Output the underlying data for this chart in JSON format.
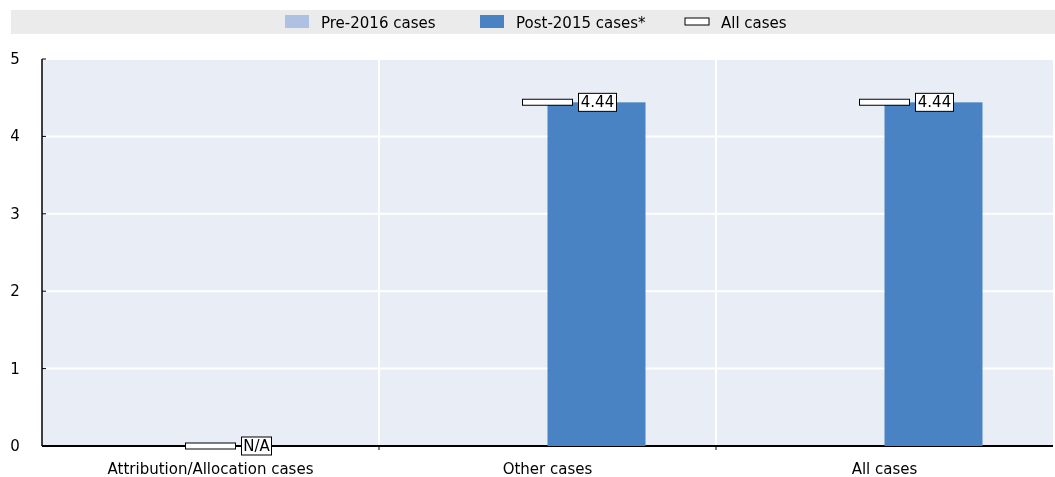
{
  "chart_data": {
    "type": "bar",
    "categories": [
      "Attribution/Allocation cases",
      "Other cases",
      "All cases"
    ],
    "series": [
      {
        "name": "Pre-2016 cases",
        "color": "#aec1e3",
        "values": [
          null,
          null,
          null
        ]
      },
      {
        "name": "Post-2015 cases*",
        "color": "#4a83c3",
        "values": [
          null,
          4.44,
          4.44
        ]
      },
      {
        "name": "All cases",
        "type": "scatter",
        "color": "#ffffff",
        "values": [
          0,
          4.44,
          4.44
        ],
        "value_labels": [
          "N/A",
          "4.44",
          "4.44"
        ]
      }
    ],
    "ylim": [
      0,
      5
    ],
    "yticks": [
      0,
      1,
      2,
      3,
      4,
      5
    ],
    "grid": "y",
    "legend": "top"
  }
}
